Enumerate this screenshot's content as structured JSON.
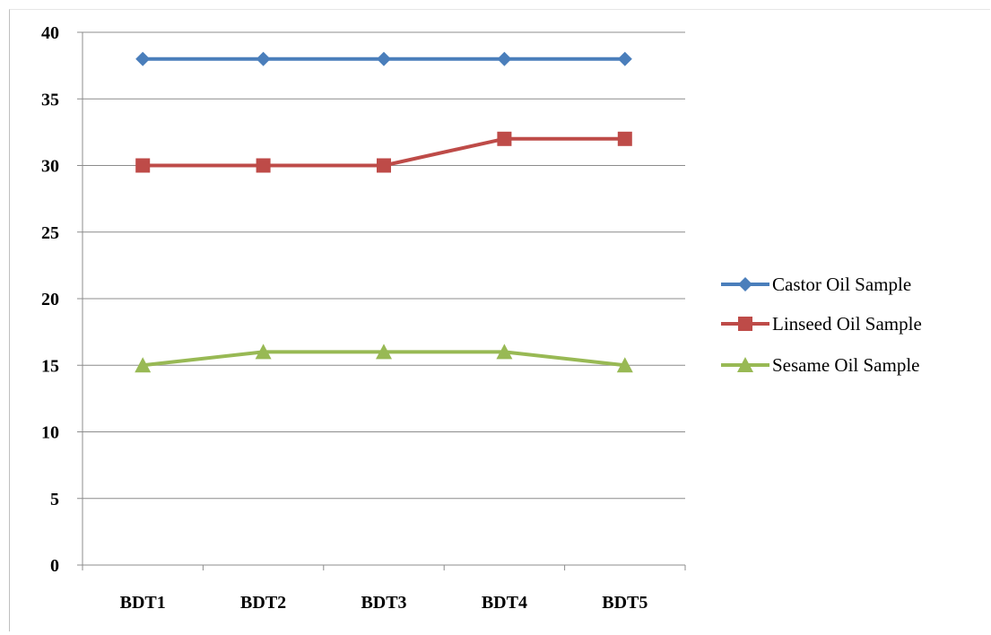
{
  "chart_data": {
    "type": "line",
    "categories": [
      "BDT1",
      "BDT2",
      "BDT3",
      "BDT4",
      "BDT5"
    ],
    "series": [
      {
        "name": "Castor Oil Sample",
        "values": [
          38,
          38,
          38,
          38,
          38
        ],
        "color": "#4a7ebb",
        "marker": "diamond"
      },
      {
        "name": "Linseed Oil Sample",
        "values": [
          30,
          30,
          30,
          32,
          32
        ],
        "color": "#be4b48",
        "marker": "square"
      },
      {
        "name": "Sesame Oil Sample",
        "values": [
          15,
          16,
          16,
          16,
          15
        ],
        "color": "#98b954",
        "marker": "triangle"
      }
    ],
    "title": "",
    "xlabel": "",
    "ylabel": "",
    "ylim": [
      0,
      40
    ],
    "yticks": [
      0,
      5,
      10,
      15,
      20,
      25,
      30,
      35,
      40
    ],
    "grid": true,
    "legend": "right"
  }
}
